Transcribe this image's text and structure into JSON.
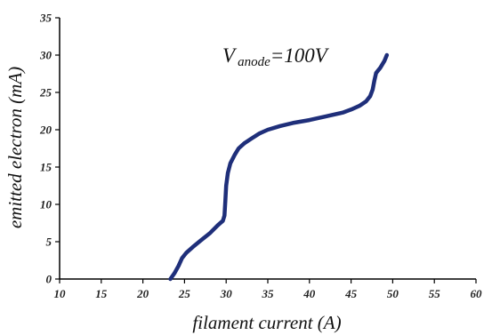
{
  "chart_data": {
    "type": "line",
    "title": "",
    "xlabel": "filament current (A)",
    "ylabel": "emitted electron (mA)",
    "xlim": [
      10,
      60
    ],
    "ylim": [
      0,
      35
    ],
    "x_ticks": [
      10,
      15,
      20,
      25,
      30,
      35,
      40,
      45,
      50,
      55,
      60
    ],
    "y_ticks": [
      0,
      5,
      10,
      15,
      20,
      25,
      30,
      35
    ],
    "grid": false,
    "legend": "none",
    "annotation": {
      "main": "V",
      "subscript": "anode",
      "suffix": "=100V"
    },
    "series": [
      {
        "color": "#1f2f7a",
        "x": [
          23.3,
          23.8,
          24.3,
          24.7,
          25.2,
          26.0,
          27.0,
          28.0,
          29.0,
          29.6,
          29.8,
          29.9,
          30.0,
          30.2,
          30.5,
          31.0,
          31.5,
          32.2,
          33.0,
          34.0,
          35.0,
          36.5,
          38.0,
          40.0,
          42.0,
          44.0,
          45.0,
          46.0,
          46.8,
          47.3,
          47.6,
          47.8,
          48.0,
          48.5,
          49.0,
          49.3
        ],
        "y": [
          0,
          0.8,
          1.8,
          2.8,
          3.5,
          4.3,
          5.2,
          6.1,
          7.2,
          7.8,
          8.5,
          10.5,
          12.5,
          14.2,
          15.5,
          16.6,
          17.5,
          18.2,
          18.8,
          19.5,
          20.0,
          20.5,
          20.9,
          21.3,
          21.8,
          22.3,
          22.7,
          23.2,
          23.8,
          24.5,
          25.4,
          26.6,
          27.6,
          28.3,
          29.2,
          30.0
        ]
      }
    ]
  }
}
